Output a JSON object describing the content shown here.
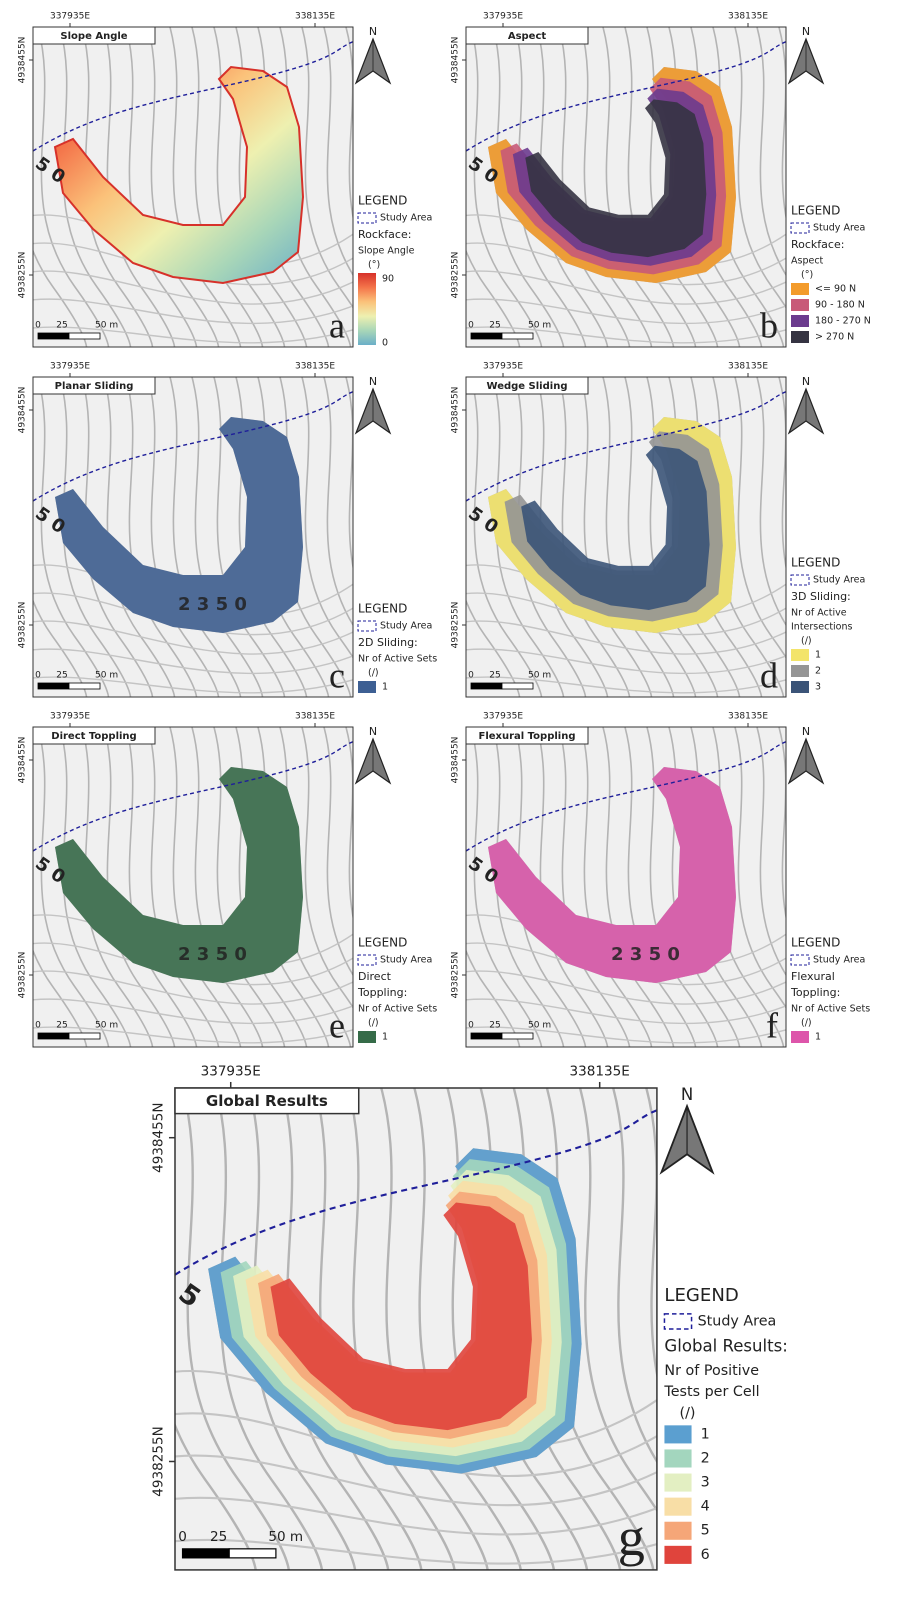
{
  "panels": [
    {
      "title": "Slope Angle",
      "letter": "a",
      "north": "N",
      "coords": [
        "337935E",
        "338135E",
        "4938455N",
        "4938255N"
      ],
      "scale": [
        "0",
        "25",
        "50 m"
      ],
      "contour_labels": [
        "5 0"
      ],
      "legend": {
        "title": "LEGEND",
        "study_area": "Study Area",
        "heading": [
          "Rockface:"
        ],
        "subheading": [
          "Slope Angle",
          "(°)"
        ],
        "gradient": {
          "colors": [
            "#d7312a",
            "#f4744a",
            "#fbc27a",
            "#eef0b0",
            "#a8d6b8",
            "#6bafc8"
          ],
          "labels": [
            "90",
            "0"
          ]
        }
      }
    },
    {
      "title": "Aspect",
      "letter": "b",
      "north": "N",
      "coords": [
        "337935E",
        "338135E",
        "4938455N",
        "4938255N"
      ],
      "scale": [
        "0",
        "25",
        "50 m"
      ],
      "contour_labels": [
        "5 0"
      ],
      "legend": {
        "title": "LEGEND",
        "study_area": "Study Area",
        "heading": [
          "Rockface:"
        ],
        "subheading": [
          "Aspect",
          "(°)"
        ],
        "items": [
          {
            "label": "<= 90 N",
            "color": "#f39b2b"
          },
          {
            "label": "90 - 180 N",
            "color": "#c85a78"
          },
          {
            "label": "180 - 270 N",
            "color": "#6b3b8e"
          },
          {
            "label": "> 270 N",
            "color": "#353342"
          }
        ]
      }
    },
    {
      "title": "Planar Sliding",
      "letter": "c",
      "north": "N",
      "coords": [
        "337935E",
        "338135E",
        "4938455N",
        "4938255N"
      ],
      "scale": [
        "0",
        "25",
        "50 m"
      ],
      "contour_labels": [
        "5 0",
        "2 3 5 0"
      ],
      "legend": {
        "title": "LEGEND",
        "study_area": "Study Area",
        "heading": [
          "2D Sliding:"
        ],
        "subheading": [
          "Nr of Active Sets",
          "(/)"
        ],
        "items": [
          {
            "label": "1",
            "color": "#3d5f93"
          }
        ]
      }
    },
    {
      "title": "Wedge Sliding",
      "letter": "d",
      "north": "N",
      "coords": [
        "337935E",
        "338135E",
        "4938455N",
        "4938255N"
      ],
      "scale": [
        "0",
        "25",
        "50 m"
      ],
      "contour_labels": [
        "5 0"
      ],
      "legend": {
        "title": "LEGEND",
        "study_area": "Study Area",
        "heading": [
          "3D Sliding:"
        ],
        "subheading": [
          "Nr of Active",
          "Intersections",
          "(/)"
        ],
        "items": [
          {
            "label": "1",
            "color": "#f3e46a"
          },
          {
            "label": "2",
            "color": "#959595"
          },
          {
            "label": "3",
            "color": "#3b5478"
          }
        ]
      }
    },
    {
      "title": "Direct Toppling",
      "letter": "e",
      "north": "N",
      "coords": [
        "337935E",
        "338135E",
        "4938455N",
        "4938255N"
      ],
      "scale": [
        "0",
        "25",
        "50 m"
      ],
      "contour_labels": [
        "5 0",
        "2 3 5 0"
      ],
      "legend": {
        "title": "LEGEND",
        "study_area": "Study Area",
        "heading": [
          "Direct",
          "Toppling:"
        ],
        "subheading": [
          "Nr of Active Sets",
          "(/)"
        ],
        "items": [
          {
            "label": "1",
            "color": "#356b48"
          }
        ]
      }
    },
    {
      "title": "Flexural Toppling",
      "letter": "f",
      "north": "N",
      "coords": [
        "337935E",
        "338135E",
        "4938455N",
        "4938255N"
      ],
      "scale": [
        "0",
        "25",
        "50 m"
      ],
      "contour_labels": [
        "5 0",
        "2 3 5 0"
      ],
      "legend": {
        "title": "LEGEND",
        "study_area": "Study Area",
        "heading": [
          "Flexural",
          "Toppling:"
        ],
        "subheading": [
          "Nr of Active Sets",
          "(/)"
        ],
        "items": [
          {
            "label": "1",
            "color": "#dd55aa"
          }
        ]
      }
    },
    {
      "title": "Global Results",
      "letter": "g",
      "north": "N",
      "coords": [
        "337935E",
        "338135E",
        "4938455N",
        "4938255N"
      ],
      "scale": [
        "0",
        "25",
        "50 m"
      ],
      "contour_labels": [
        "5"
      ],
      "legend": {
        "title": "LEGEND",
        "study_area": "Study Area",
        "heading": [
          "Global Results:"
        ],
        "subheading": [
          "Nr of Positive",
          "Tests per Cell",
          "(/)"
        ],
        "items": [
          {
            "label": "1",
            "color": "#5b9fd0"
          },
          {
            "label": "2",
            "color": "#a3d6be"
          },
          {
            "label": "3",
            "color": "#e3efc2"
          },
          {
            "label": "4",
            "color": "#f8dea6"
          },
          {
            "label": "5",
            "color": "#f5a678"
          },
          {
            "label": "6",
            "color": "#e0443c"
          }
        ]
      }
    }
  ]
}
